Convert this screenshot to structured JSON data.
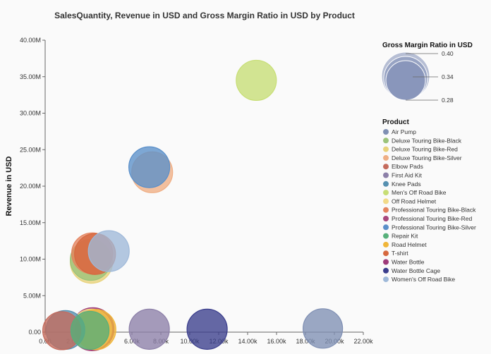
{
  "chart_data": {
    "type": "scatter",
    "title": "SalesQuantity, Revenue in USD and Gross Margin Ratio in USD by Product",
    "xlabel": "",
    "ylabel": "Revenue in USD",
    "xlim": [
      0,
      22000
    ],
    "ylim": [
      0,
      40000000
    ],
    "x_ticks": [
      "0.00",
      "2.00k",
      "4.00k",
      "6.00k",
      "8.00k",
      "10.00k",
      "12.00k",
      "14.00k",
      "16.00k",
      "18.00k",
      "20.00k",
      "22.00k"
    ],
    "y_ticks": [
      "0.00",
      "5.00M",
      "10.00M",
      "15.00M",
      "20.00M",
      "25.00M",
      "30.00M",
      "35.00M",
      "40.00M"
    ],
    "size_legend": {
      "title": "Gross Margin Ratio in USD",
      "values": [
        "0.40",
        "0.34",
        "0.28"
      ]
    },
    "legend_title": "Product",
    "series": [
      {
        "name": "Air Pump",
        "color": "#7f8fb3",
        "x": 19200,
        "y": 500000,
        "size": 0.32
      },
      {
        "name": "Deluxe Touring Bike-Black",
        "color": "#9bc37a",
        "x": 3150,
        "y": 9900000,
        "size": 0.34
      },
      {
        "name": "Deluxe Touring Bike-Red",
        "color": "#e8d27a",
        "x": 3200,
        "y": 9600000,
        "size": 0.36
      },
      {
        "name": "Deluxe Touring Bike-Silver",
        "color": "#efae84",
        "x": 7400,
        "y": 21900000,
        "size": 0.34
      },
      {
        "name": "Elbow Pads",
        "color": "#c46a5c",
        "x": 1150,
        "y": 200000,
        "size": 0.3
      },
      {
        "name": "First Aid Kit",
        "color": "#8c7fa8",
        "x": 7200,
        "y": 400000,
        "size": 0.33
      },
      {
        "name": "Knee Pads",
        "color": "#5690b0",
        "x": 1400,
        "y": 300000,
        "size": 0.31
      },
      {
        "name": "Men's Off Road Bike",
        "color": "#c7de75",
        "x": 14600,
        "y": 34500000,
        "size": 0.33
      },
      {
        "name": "Off Road Helmet",
        "color": "#f2da88",
        "x": 3200,
        "y": 400000,
        "size": 0.33
      },
      {
        "name": "Professional Touring Bike-Black",
        "color": "#e4835e",
        "x": 3250,
        "y": 10800000,
        "size": 0.34
      },
      {
        "name": "Professional Touring Bike-Red",
        "color": "#a8477d",
        "x": 3250,
        "y": 300000,
        "size": 0.35
      },
      {
        "name": "Professional Touring Bike-Silver",
        "color": "#5a8fc9",
        "x": 7200,
        "y": 22600000,
        "size": 0.34
      },
      {
        "name": "Repair Kit",
        "color": "#56b07a",
        "x": 3100,
        "y": 250000,
        "size": 0.3
      },
      {
        "name": "Road Helmet",
        "color": "#f0b63a",
        "x": 3500,
        "y": 350000,
        "size": 0.33
      },
      {
        "name": "T-shirt",
        "color": "#d6683f",
        "x": 3450,
        "y": 10700000,
        "size": 0.34
      },
      {
        "name": "Water Bottle",
        "color": "#9e3a7a",
        "x": 3300,
        "y": 450000,
        "size": 0.36
      },
      {
        "name": "Water Bottle Cage",
        "color": "#3a3d8c",
        "x": 11200,
        "y": 400000,
        "size": 0.33
      },
      {
        "name": "Women's Off Road Bike",
        "color": "#9fb9d9",
        "x": 4400,
        "y": 11100000,
        "size": 0.34
      }
    ]
  }
}
